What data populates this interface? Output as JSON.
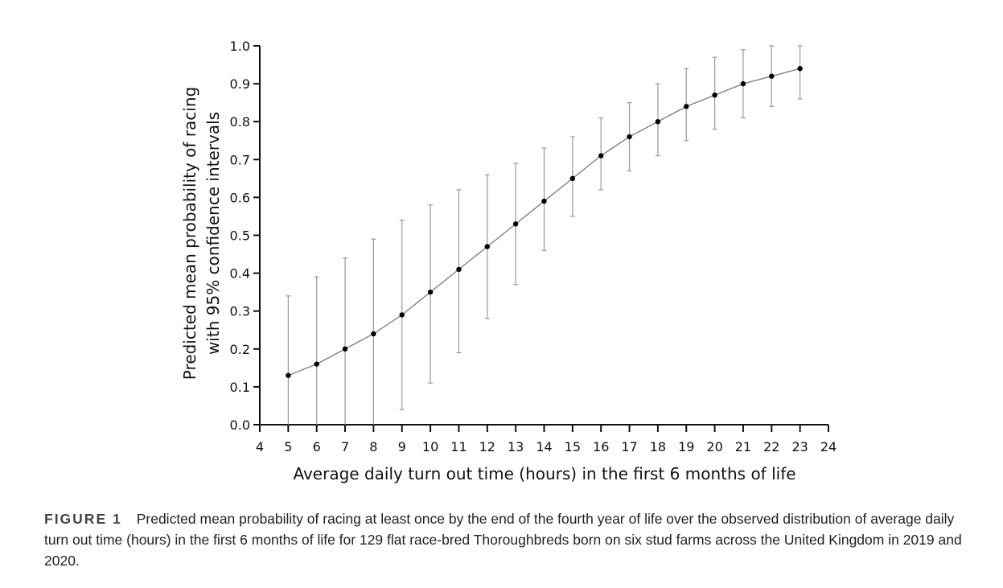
{
  "chart_data": {
    "type": "scatter",
    "title": "",
    "xlabel": "Average daily turn out time (hours) in the first 6 months of life",
    "ylabel_line1": "Predicted mean probability of racing",
    "ylabel_line2": "with 95% confidence intervals",
    "xlim": [
      4,
      24
    ],
    "ylim": [
      0.0,
      1.0
    ],
    "x_ticks": [
      "4",
      "5",
      "6",
      "7",
      "8",
      "9",
      "10",
      "11",
      "12",
      "13",
      "14",
      "15",
      "16",
      "17",
      "18",
      "19",
      "20",
      "21",
      "22",
      "23",
      "24"
    ],
    "y_ticks": [
      "0.0",
      "0.1",
      "0.2",
      "0.3",
      "0.4",
      "0.5",
      "0.6",
      "0.7",
      "0.8",
      "0.9",
      "1.0"
    ],
    "grid": false,
    "series": [
      {
        "name": "Predicted mean probability",
        "x": [
          5,
          6,
          7,
          8,
          9,
          10,
          11,
          12,
          13,
          14,
          15,
          16,
          17,
          18,
          19,
          20,
          21,
          22,
          23
        ],
        "y": [
          0.13,
          0.16,
          0.2,
          0.24,
          0.29,
          0.35,
          0.41,
          0.47,
          0.53,
          0.59,
          0.65,
          0.71,
          0.76,
          0.8,
          0.84,
          0.87,
          0.9,
          0.92,
          0.94
        ],
        "lower": [
          0.0,
          0.0,
          0.0,
          0.0,
          0.04,
          0.11,
          0.19,
          0.28,
          0.37,
          0.46,
          0.55,
          0.62,
          0.67,
          0.71,
          0.75,
          0.78,
          0.81,
          0.84,
          0.86
        ],
        "upper": [
          0.34,
          0.39,
          0.44,
          0.49,
          0.54,
          0.58,
          0.62,
          0.66,
          0.69,
          0.73,
          0.76,
          0.81,
          0.85,
          0.9,
          0.94,
          0.97,
          0.99,
          1.0,
          1.0
        ]
      }
    ]
  },
  "caption": {
    "label": "FIGURE 1",
    "text": "Predicted mean probability of racing at least once by the end of the fourth year of life over the observed distribution of average daily turn out time (hours) in the first 6 months of life for 129 flat race-bred Thoroughbreds born on six stud farms across the United Kingdom in 2019 and 2020."
  }
}
